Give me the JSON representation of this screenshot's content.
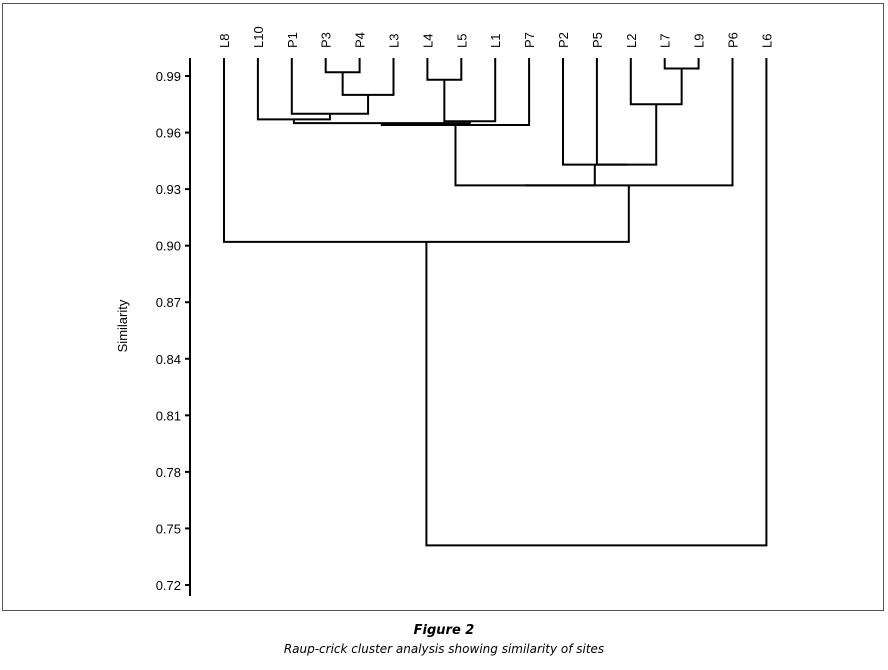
{
  "chart_data": {
    "type": "dendrogram",
    "ylabel": "Similarity",
    "ylim": [
      0.72,
      1.0
    ],
    "y_ticks": [
      "0.72",
      "0.75",
      "0.78",
      "0.81",
      "0.84",
      "0.87",
      "0.90",
      "0.93",
      "0.96",
      "0.99"
    ],
    "leaves": [
      "L8",
      "L10",
      "P1",
      "P3",
      "P4",
      "L3",
      "L4",
      "L5",
      "L1",
      "P7",
      "P2",
      "P5",
      "L2",
      "L7",
      "L9",
      "P6",
      "L6"
    ],
    "merges": [
      {
        "left": "P3",
        "right": "P4",
        "similarity": 0.992
      },
      {
        "left": "L7",
        "right": "L9",
        "similarity": 0.994
      },
      {
        "left": "L4",
        "right": "L5",
        "similarity": 0.988
      },
      {
        "left": "(P3,P4)",
        "right": "L3",
        "similarity": 0.98
      },
      {
        "left": "L2",
        "right": "(L7,L9)",
        "similarity": 0.975
      },
      {
        "left": "P1",
        "right": "((P3,P4),L3)",
        "similarity": 0.97
      },
      {
        "left": "(L4,L5)",
        "right": "L1",
        "similarity": 0.966
      },
      {
        "left": "L10",
        "right": "(P1,P3,P4,L3)",
        "similarity": 0.967
      },
      {
        "left": "(L10,P1,P3,P4,L3)",
        "right": "(L4,L5,L1)",
        "similarity": 0.965
      },
      {
        "left": "(L10,P1,P3,P4,L3,L4,L5,L1)",
        "right": "P7",
        "similarity": 0.964
      },
      {
        "left": "P5",
        "right": "(L2,L7,L9)",
        "similarity": 0.943
      },
      {
        "left": "P2",
        "right": "(P5,L2,L7,L9)",
        "similarity": 0.943
      },
      {
        "left": "(L10,P1,P3,P4,L3,L4,L5,L1,P7)",
        "right": "(P2,P5,L2,L7,L9)",
        "similarity": 0.932
      },
      {
        "left": "(L10..L9)",
        "right": "P6",
        "similarity": 0.932
      },
      {
        "left": "L8",
        "right": "(L10..P6)",
        "similarity": 0.902
      },
      {
        "left": "(L8..P6)",
        "right": "L6",
        "similarity": 0.741
      }
    ]
  },
  "caption": {
    "figure_number": "Figure 2",
    "text": "Raup-crick cluster analysis showing similarity of sites"
  },
  "colors": {
    "line": "#000000",
    "frame": "#555555"
  }
}
